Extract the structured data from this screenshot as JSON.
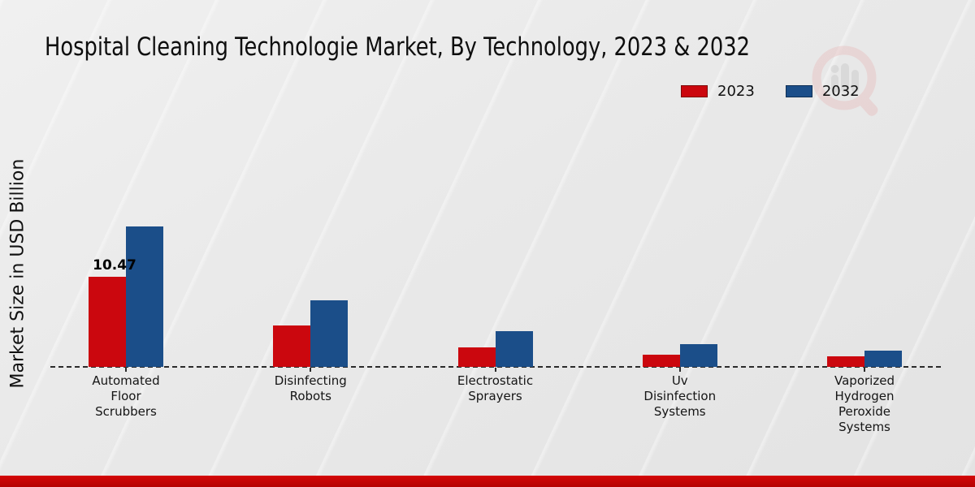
{
  "title": "Hospital Cleaning Technologie Market, By Technology, 2023 & 2032",
  "y_axis_label": "Market Size in USD Billion",
  "legend": {
    "position": "top-right",
    "items": [
      {
        "label": "2023",
        "color": "#cb070e",
        "border": "#7d0a0a"
      },
      {
        "label": "2032",
        "color": "#1b4e89",
        "border": "#0f2f55"
      }
    ]
  },
  "watermark": "magnifier-bar-chart-logo",
  "footer_bar_color": "#c00404",
  "chart_data": {
    "type": "bar",
    "title": "Hospital Cleaning Technologie Market, By Technology, 2023 & 2032",
    "xlabel": "",
    "ylabel": "Market Size in USD Billion",
    "ylim": [
      0,
      18
    ],
    "grid": false,
    "baseline_style": "dashed",
    "legend_position": "top-right",
    "categories": [
      "Automated\nFloor\nScrubbers",
      "Disinfecting\nRobots",
      "Electrostatic\nSprayers",
      "Uv\nDisinfection\nSystems",
      "Vaporized\nHydrogen\nPeroxide\nSystems"
    ],
    "series": [
      {
        "name": "2023",
        "color": "#cb070e",
        "values": [
          10.47,
          4.81,
          2.26,
          1.42,
          1.23
        ]
      },
      {
        "name": "2032",
        "color": "#1b4e89",
        "values": [
          16.32,
          7.74,
          4.15,
          2.64,
          1.89
        ]
      }
    ],
    "annotations": [
      {
        "text": "10.47",
        "series_index": 0,
        "category_index": 0
      }
    ]
  }
}
